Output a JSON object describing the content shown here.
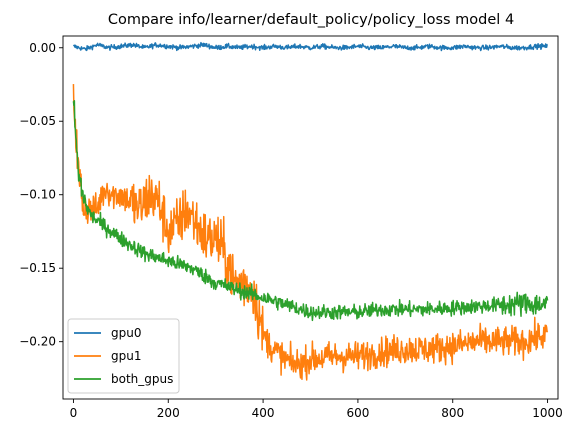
{
  "chart_data": {
    "type": "line",
    "title": "Compare info/learner/default_policy/policy_loss model 4",
    "xlabel": "",
    "ylabel": "",
    "xlim": [
      -22,
      1022
    ],
    "ylim": [
      -0.239,
      0.008
    ],
    "xticks": [
      0,
      200,
      400,
      600,
      800,
      1000
    ],
    "xtick_labels": [
      "0",
      "200",
      "400",
      "600",
      "800",
      "1000"
    ],
    "yticks": [
      0.0,
      -0.05,
      -0.1,
      -0.15,
      -0.2
    ],
    "ytick_labels": [
      "0.00",
      "−0.05",
      "−0.10",
      "−0.15",
      "−0.20"
    ],
    "grid": false,
    "legend_position": "lower-left",
    "series": [
      {
        "name": "gpu0",
        "color": "#1f77b4",
        "x": [
          0,
          25,
          50,
          75,
          100,
          125,
          150,
          175,
          200,
          225,
          250,
          275,
          300,
          325,
          350,
          375,
          400,
          425,
          450,
          475,
          500,
          525,
          550,
          575,
          600,
          625,
          650,
          675,
          700,
          725,
          750,
          775,
          800,
          825,
          850,
          875,
          900,
          925,
          950,
          975,
          1000
        ],
        "y": [
          0.001,
          -0.001,
          0.002,
          0.0,
          0.001,
          0.002,
          0.0,
          0.002,
          0.001,
          0.0,
          0.001,
          0.002,
          0.0,
          0.001,
          0.0,
          0.001,
          0.0,
          0.001,
          0.0,
          0.001,
          0.0,
          0.001,
          0.0,
          0.0,
          0.001,
          0.0,
          0.0,
          0.001,
          0.0,
          0.0,
          0.001,
          0.0,
          0.0,
          0.001,
          0.0,
          0.0,
          0.001,
          0.0,
          0.0,
          0.001,
          0.001
        ],
        "noise": 0.0016
      },
      {
        "name": "gpu1",
        "color": "#ff7f0e",
        "x": [
          0,
          5,
          10,
          20,
          30,
          40,
          50,
          60,
          70,
          80,
          90,
          100,
          120,
          140,
          160,
          180,
          200,
          220,
          240,
          260,
          280,
          300,
          320,
          340,
          360,
          380,
          390,
          400,
          420,
          440,
          460,
          480,
          500,
          550,
          600,
          650,
          700,
          750,
          800,
          850,
          900,
          950,
          1000
        ],
        "y": [
          -0.03,
          -0.055,
          -0.085,
          -0.105,
          -0.11,
          -0.11,
          -0.11,
          -0.1,
          -0.095,
          -0.1,
          -0.1,
          -0.1,
          -0.105,
          -0.11,
          -0.1,
          -0.105,
          -0.125,
          -0.12,
          -0.11,
          -0.12,
          -0.13,
          -0.13,
          -0.14,
          -0.16,
          -0.16,
          -0.165,
          -0.18,
          -0.195,
          -0.205,
          -0.21,
          -0.215,
          -0.215,
          -0.212,
          -0.21,
          -0.21,
          -0.207,
          -0.205,
          -0.205,
          -0.203,
          -0.2,
          -0.2,
          -0.2,
          -0.195
        ],
        "noise": 0.01
      },
      {
        "name": "both_gpus",
        "color": "#2ca02c",
        "x": [
          0,
          5,
          10,
          20,
          30,
          40,
          60,
          80,
          100,
          150,
          200,
          250,
          300,
          350,
          400,
          450,
          500,
          550,
          600,
          650,
          700,
          750,
          800,
          850,
          900,
          950,
          1000
        ],
        "y": [
          -0.035,
          -0.06,
          -0.085,
          -0.1,
          -0.11,
          -0.115,
          -0.12,
          -0.125,
          -0.13,
          -0.14,
          -0.145,
          -0.15,
          -0.16,
          -0.165,
          -0.17,
          -0.175,
          -0.18,
          -0.18,
          -0.18,
          -0.178,
          -0.178,
          -0.178,
          -0.177,
          -0.176,
          -0.175,
          -0.174,
          -0.175
        ],
        "noise": 0.005
      }
    ]
  }
}
